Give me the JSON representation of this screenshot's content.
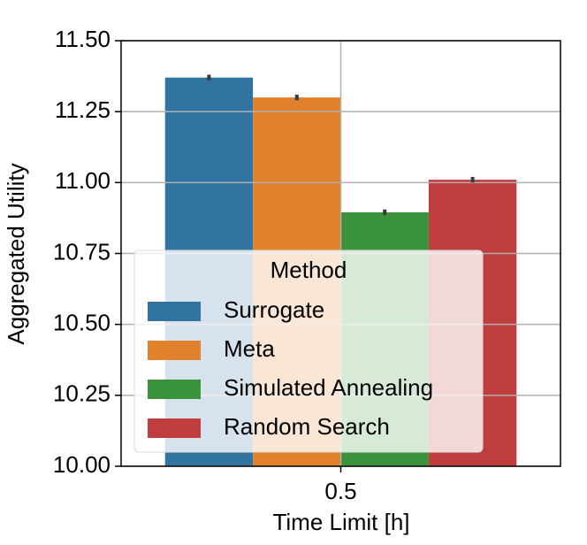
{
  "chart_data": {
    "type": "bar",
    "xlabel": "Time Limit [h]",
    "ylabel": "Aggregated Utility",
    "categories": [
      "0.5"
    ],
    "series": [
      {
        "name": "Surrogate",
        "color": "#3274a1",
        "values": [
          11.37
        ],
        "errors": [
          0.01
        ]
      },
      {
        "name": "Meta",
        "color": "#e1812c",
        "values": [
          11.3
        ],
        "errors": [
          0.01
        ]
      },
      {
        "name": "Simulated Annealing",
        "color": "#3a923a",
        "values": [
          10.895
        ],
        "errors": [
          0.01
        ]
      },
      {
        "name": "Random Search",
        "color": "#c03d3e",
        "values": [
          11.01
        ],
        "errors": [
          0.01
        ]
      }
    ],
    "ylim": [
      10,
      11.5
    ],
    "yticks": [
      {
        "value": 10,
        "label": "10.00"
      },
      10.25,
      {
        "value": 10.5,
        "label": "10.50"
      },
      10.75,
      {
        "value": 11,
        "label": "11.00"
      },
      11.25,
      {
        "value": 11.5,
        "label": "11.50"
      }
    ],
    "grid": true,
    "legend_title": "Method",
    "legend_loc": "lower left"
  }
}
